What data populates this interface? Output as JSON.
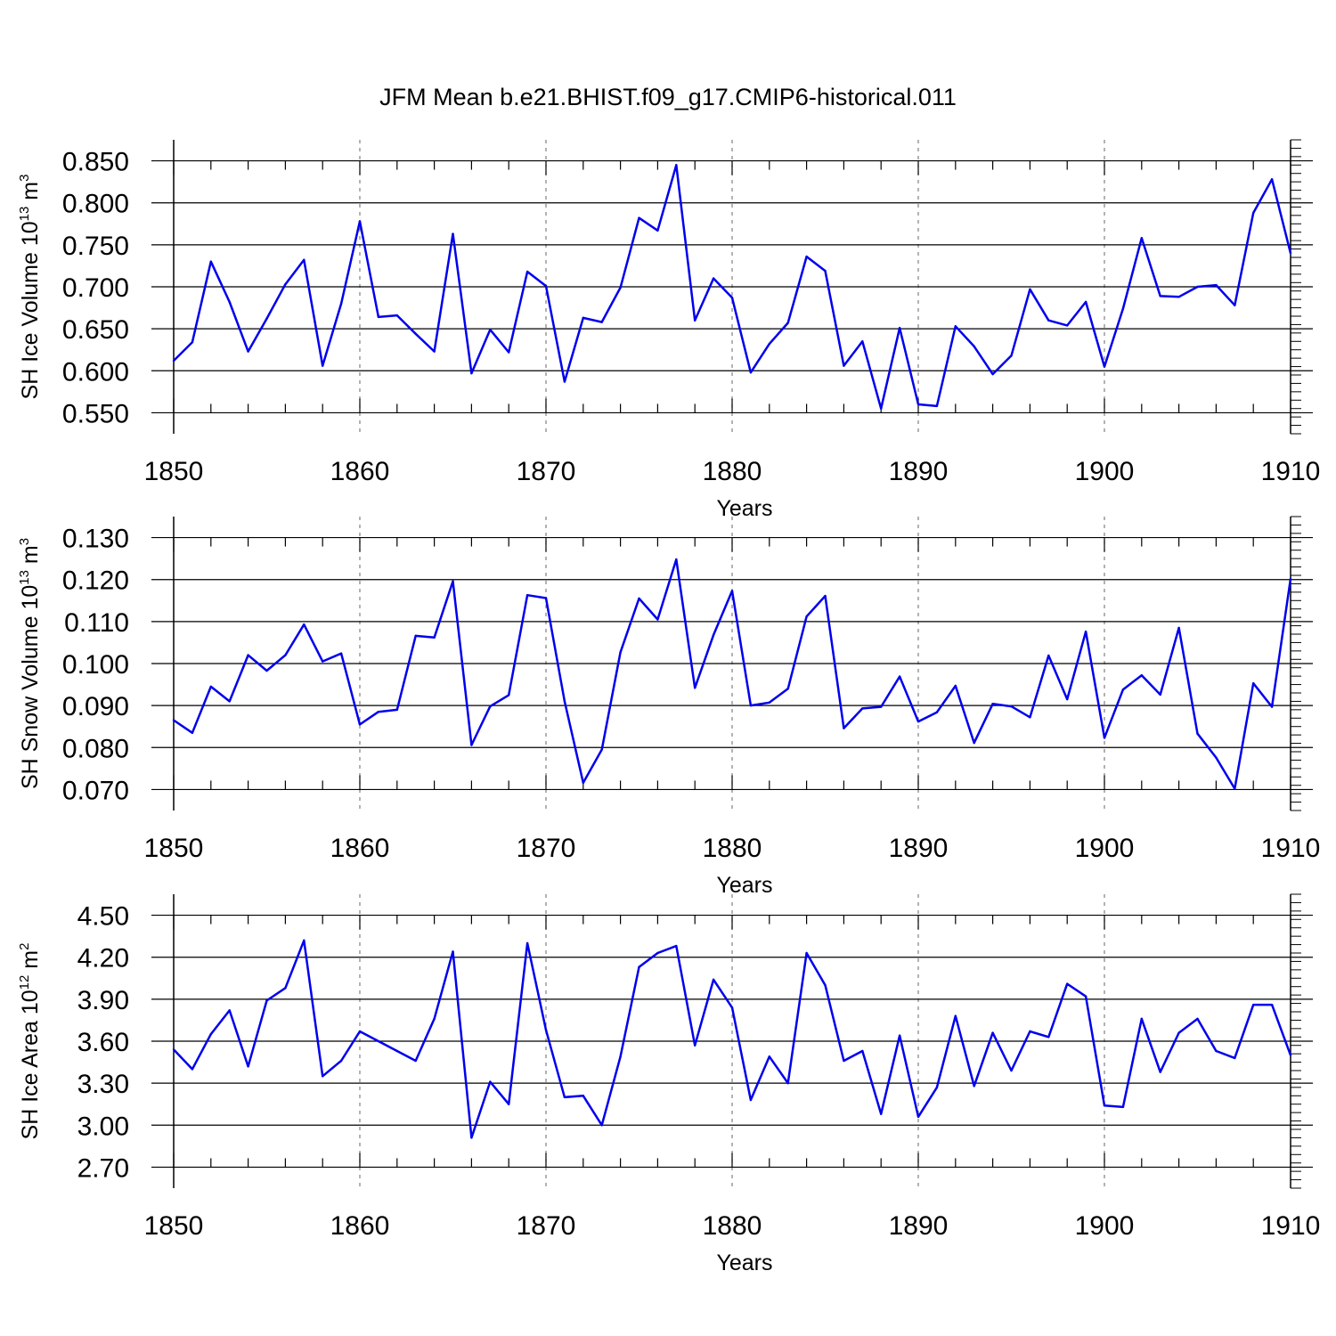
{
  "title": "JFM Mean b.e21.BHIST.f09_g17.CMIP6-historical.011",
  "colors": {
    "line": "#0000ee",
    "axis": "#000000",
    "grid": "#808080"
  },
  "chart_data": [
    {
      "type": "line",
      "name": "sh-ice-volume",
      "ylabel_main": "SH Ice Volume 10",
      "ylabel_exp": "13",
      "ylabel_unit": " m",
      "ylabel_unit_exp": "3",
      "xlabel": "Years",
      "xlim": [
        1850,
        1910
      ],
      "ylim": [
        0.525,
        0.875
      ],
      "yticks": [
        0.55,
        0.6,
        0.65,
        0.7,
        0.75,
        0.8,
        0.85
      ],
      "ytick_labels": [
        "0.550",
        "0.600",
        "0.650",
        "0.700",
        "0.750",
        "0.800",
        "0.850"
      ],
      "xticks": [
        1850,
        1860,
        1870,
        1880,
        1890,
        1900,
        1910
      ],
      "xtick_labels": [
        "1850",
        "1860",
        "1870",
        "1880",
        "1890",
        "1900",
        "1910"
      ],
      "grid_x": [
        1860,
        1870,
        1880,
        1890,
        1900
      ],
      "x": [
        1850,
        1851,
        1852,
        1853,
        1854,
        1855,
        1856,
        1857,
        1858,
        1859,
        1860,
        1861,
        1862,
        1863,
        1864,
        1865,
        1866,
        1867,
        1868,
        1869,
        1870,
        1871,
        1872,
        1873,
        1874,
        1875,
        1876,
        1877,
        1878,
        1879,
        1880,
        1881,
        1882,
        1883,
        1884,
        1885,
        1886,
        1887,
        1888,
        1889,
        1890,
        1891,
        1892,
        1893,
        1894,
        1895,
        1896,
        1897,
        1898,
        1899,
        1900,
        1901,
        1902,
        1903,
        1904,
        1905,
        1906,
        1907,
        1908,
        1909,
        1910
      ],
      "values": [
        0.612,
        0.634,
        0.73,
        0.682,
        0.623,
        0.662,
        0.703,
        0.732,
        0.606,
        0.68,
        0.778,
        0.664,
        0.666,
        0.644,
        0.623,
        0.763,
        0.597,
        0.649,
        0.622,
        0.718,
        0.701,
        0.587,
        0.663,
        0.658,
        0.699,
        0.782,
        0.767,
        0.845,
        0.66,
        0.71,
        0.687,
        0.598,
        0.632,
        0.657,
        0.736,
        0.719,
        0.606,
        0.635,
        0.555,
        0.651,
        0.56,
        0.558,
        0.653,
        0.629,
        0.596,
        0.618,
        0.697,
        0.66,
        0.654,
        0.682,
        0.605,
        0.674,
        0.758,
        0.689,
        0.688,
        0.7,
        0.702,
        0.678,
        0.788,
        0.828,
        0.74
      ]
    },
    {
      "type": "line",
      "name": "sh-snow-volume",
      "ylabel_main": "SH Snow Volume 10",
      "ylabel_exp": "13",
      "ylabel_unit": " m",
      "ylabel_unit_exp": "3",
      "xlabel": "Years",
      "xlim": [
        1850,
        1910
      ],
      "ylim": [
        0.065,
        0.135
      ],
      "yticks": [
        0.07,
        0.08,
        0.09,
        0.1,
        0.11,
        0.12,
        0.13
      ],
      "ytick_labels": [
        "0.070",
        "0.080",
        "0.090",
        "0.100",
        "0.110",
        "0.120",
        "0.130"
      ],
      "xticks": [
        1850,
        1860,
        1870,
        1880,
        1890,
        1900,
        1910
      ],
      "xtick_labels": [
        "1850",
        "1860",
        "1870",
        "1880",
        "1890",
        "1900",
        "1910"
      ],
      "grid_x": [
        1860,
        1870,
        1880,
        1890,
        1900
      ],
      "x": [
        1850,
        1851,
        1852,
        1853,
        1854,
        1855,
        1856,
        1857,
        1858,
        1859,
        1860,
        1861,
        1862,
        1863,
        1864,
        1865,
        1866,
        1867,
        1868,
        1869,
        1870,
        1871,
        1872,
        1873,
        1874,
        1875,
        1876,
        1877,
        1878,
        1879,
        1880,
        1881,
        1882,
        1883,
        1884,
        1885,
        1886,
        1887,
        1888,
        1889,
        1890,
        1891,
        1892,
        1893,
        1894,
        1895,
        1896,
        1897,
        1898,
        1899,
        1900,
        1901,
        1902,
        1903,
        1904,
        1905,
        1906,
        1907,
        1908,
        1909,
        1910
      ],
      "values": [
        0.0865,
        0.0835,
        0.0945,
        0.091,
        0.102,
        0.0983,
        0.102,
        0.1093,
        0.1005,
        0.1024,
        0.0855,
        0.0885,
        0.089,
        0.1066,
        0.1062,
        0.1196,
        0.0806,
        0.0898,
        0.0925,
        0.1163,
        0.1156,
        0.091,
        0.0716,
        0.0795,
        0.1027,
        0.1155,
        0.1105,
        0.1248,
        0.0942,
        0.1068,
        0.1173,
        0.09,
        0.0907,
        0.094,
        0.1112,
        0.1161,
        0.0846,
        0.0893,
        0.0897,
        0.0969,
        0.0862,
        0.0884,
        0.0947,
        0.0811,
        0.0904,
        0.0898,
        0.0872,
        0.1019,
        0.0915,
        0.1076,
        0.0823,
        0.0938,
        0.0972,
        0.0926,
        0.1085,
        0.0833,
        0.0776,
        0.0702,
        0.0953,
        0.0897,
        0.1202
      ]
    },
    {
      "type": "line",
      "name": "sh-ice-area",
      "ylabel_main": "SH Ice Area 10",
      "ylabel_exp": "12",
      "ylabel_unit": " m",
      "ylabel_unit_exp": "2",
      "xlabel": "Years",
      "xlim": [
        1850,
        1910
      ],
      "ylim": [
        2.55,
        4.65
      ],
      "yticks": [
        2.7,
        3.0,
        3.3,
        3.6,
        3.9,
        4.2,
        4.5
      ],
      "ytick_labels": [
        "2.70",
        "3.00",
        "3.30",
        "3.60",
        "3.90",
        "4.20",
        "4.50"
      ],
      "xticks": [
        1850,
        1860,
        1870,
        1880,
        1890,
        1900,
        1910
      ],
      "xtick_labels": [
        "1850",
        "1860",
        "1870",
        "1880",
        "1890",
        "1900",
        "1910"
      ],
      "grid_x": [
        1860,
        1870,
        1880,
        1890,
        1900
      ],
      "x": [
        1850,
        1851,
        1852,
        1853,
        1854,
        1855,
        1856,
        1857,
        1858,
        1859,
        1860,
        1861,
        1862,
        1863,
        1864,
        1865,
        1866,
        1867,
        1868,
        1869,
        1870,
        1871,
        1872,
        1873,
        1874,
        1875,
        1876,
        1877,
        1878,
        1879,
        1880,
        1881,
        1882,
        1883,
        1884,
        1885,
        1886,
        1887,
        1888,
        1889,
        1890,
        1891,
        1892,
        1893,
        1894,
        1895,
        1896,
        1897,
        1898,
        1899,
        1900,
        1901,
        1902,
        1903,
        1904,
        1905,
        1906,
        1907,
        1908,
        1909,
        1910
      ],
      "values": [
        3.54,
        3.4,
        3.65,
        3.82,
        3.42,
        3.89,
        3.98,
        4.32,
        3.35,
        3.46,
        3.67,
        3.6,
        3.53,
        3.46,
        3.76,
        4.24,
        2.91,
        3.31,
        3.15,
        4.3,
        3.68,
        3.2,
        3.21,
        3.0,
        3.49,
        4.13,
        4.23,
        4.28,
        3.57,
        4.04,
        3.84,
        3.18,
        3.49,
        3.3,
        4.23,
        4.0,
        3.46,
        3.53,
        3.08,
        3.64,
        3.06,
        3.27,
        3.78,
        3.28,
        3.66,
        3.39,
        3.67,
        3.63,
        4.01,
        3.92,
        3.14,
        3.13,
        3.76,
        3.38,
        3.66,
        3.76,
        3.53,
        3.48,
        3.86,
        3.86,
        3.5
      ]
    }
  ]
}
